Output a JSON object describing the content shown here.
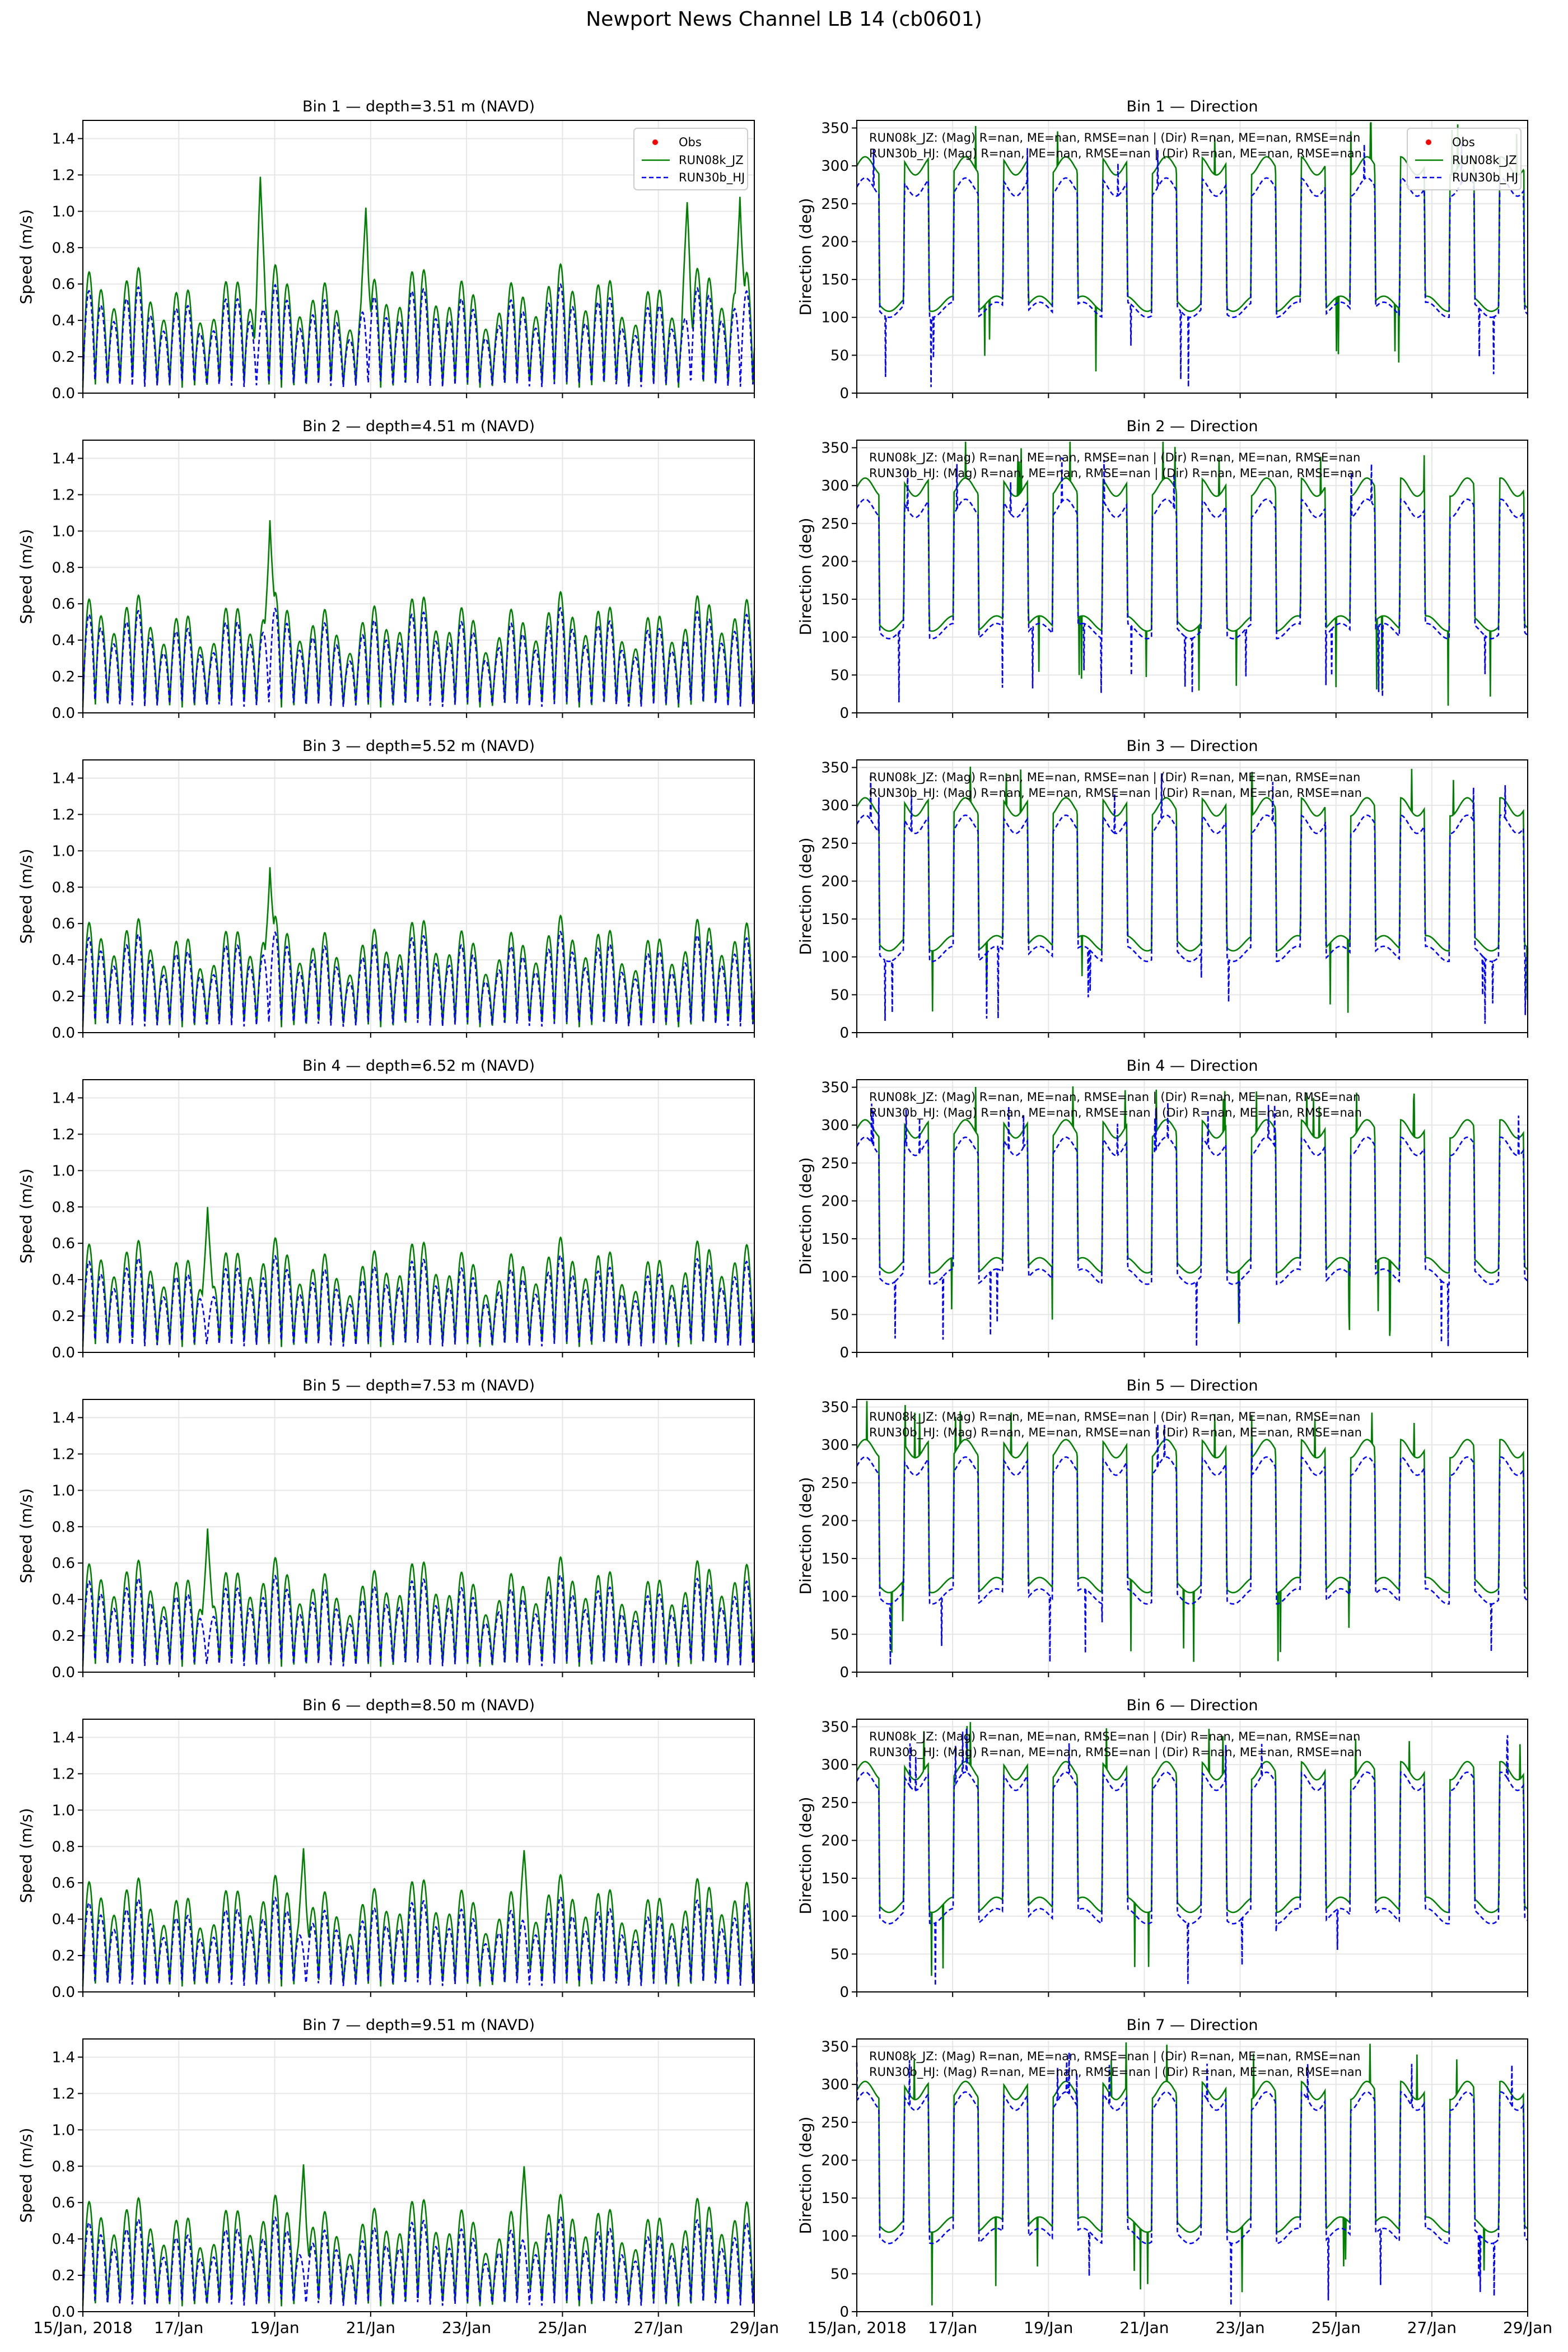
{
  "figure": {
    "title": "Newport News Channel LB 14 (cb0601)"
  },
  "legend": {
    "obs": "Obs",
    "model_a": "RUN08k_JZ",
    "model_b": "RUN30b_HJ"
  },
  "colors": {
    "obs": "#ff0000",
    "model_a": "#008000",
    "model_b": "#0000ff",
    "grid": "#e6e6e6",
    "axis": "#000000"
  },
  "x_axis": {
    "range_days": [
      0,
      14
    ],
    "tick_days": [
      0,
      2,
      4,
      6,
      8,
      10,
      12,
      14
    ],
    "tick_labels": [
      "15/Jan, 2018",
      "17/Jan",
      "19/Jan",
      "21/Jan",
      "23/Jan",
      "25/Jan",
      "27/Jan",
      "29/Jan"
    ]
  },
  "speed_axis": {
    "label": "Speed (m/s)",
    "ylim": [
      0,
      1.5
    ],
    "ticks": [
      0,
      0.2,
      0.4,
      0.6,
      0.8,
      1.0,
      1.2,
      1.4
    ],
    "tick_labels": [
      "0.0",
      "0.2",
      "0.4",
      "0.6",
      "0.8",
      "1.0",
      "1.2",
      "1.4"
    ]
  },
  "dir_axis": {
    "label": "Direction (deg)",
    "ylim": [
      0,
      360
    ],
    "ticks": [
      0,
      50,
      100,
      150,
      200,
      250,
      300,
      350
    ],
    "tick_labels": [
      "0",
      "50",
      "100",
      "150",
      "200",
      "250",
      "300",
      "350"
    ]
  },
  "stats": {
    "line_a": "RUN08k_JZ: (Mag) R=nan, ME=nan, RMSE=nan | (Dir) R=nan, ME=nan, RMSE=nan",
    "line_b": "RUN30b_HJ: (Mag) R=nan, ME=nan, RMSE=nan | (Dir) R=nan, ME=nan, RMSE=nan"
  },
  "chart_data": [
    {
      "type": "line",
      "panel": "speed",
      "bin": 1,
      "title": "Bin 1 — depth=3.51 m (NAVD)",
      "series": [
        {
          "name": "RUN08k_JZ",
          "amplitude": 0.62,
          "peak_values": [
            [
              3.7,
              1.19
            ],
            [
              5.9,
              1.02
            ],
            [
              12.6,
              1.05
            ],
            [
              13.7,
              1.08
            ]
          ]
        },
        {
          "name": "RUN30b_HJ",
          "amplitude": 0.52
        }
      ]
    },
    {
      "type": "line",
      "panel": "direction",
      "bin": 1,
      "title": "Bin 1 — Direction",
      "series": [
        {
          "name": "RUN08k_JZ",
          "flood_deg": 300,
          "ebb_deg": 118
        },
        {
          "name": "RUN30b_HJ",
          "flood_deg": 272,
          "ebb_deg": 110
        }
      ]
    },
    {
      "type": "line",
      "panel": "speed",
      "bin": 2,
      "title": "Bin 2 — depth=4.51 m (NAVD)",
      "series": [
        {
          "name": "RUN08k_JZ",
          "amplitude": 0.58,
          "peak_values": [
            [
              3.9,
              1.06
            ]
          ]
        },
        {
          "name": "RUN30b_HJ",
          "amplitude": 0.5
        }
      ]
    },
    {
      "type": "line",
      "panel": "direction",
      "bin": 2,
      "title": "Bin 2 — Direction",
      "series": [
        {
          "name": "RUN08k_JZ",
          "flood_deg": 298,
          "ebb_deg": 118
        },
        {
          "name": "RUN30b_HJ",
          "flood_deg": 270,
          "ebb_deg": 108
        }
      ]
    },
    {
      "type": "line",
      "panel": "speed",
      "bin": 3,
      "title": "Bin 3 — depth=5.52 m (NAVD)",
      "series": [
        {
          "name": "RUN08k_JZ",
          "amplitude": 0.56,
          "peak_values": [
            [
              3.9,
              0.91
            ]
          ]
        },
        {
          "name": "RUN30b_HJ",
          "amplitude": 0.48
        }
      ]
    },
    {
      "type": "line",
      "panel": "direction",
      "bin": 3,
      "title": "Bin 3 — Direction",
      "series": [
        {
          "name": "RUN08k_JZ",
          "flood_deg": 298,
          "ebb_deg": 118
        },
        {
          "name": "RUN30b_HJ",
          "flood_deg": 275,
          "ebb_deg": 104
        }
      ]
    },
    {
      "type": "line",
      "panel": "speed",
      "bin": 4,
      "title": "Bin 4 — depth=6.52 m (NAVD)",
      "series": [
        {
          "name": "RUN08k_JZ",
          "amplitude": 0.55,
          "peak_values": [
            [
              2.6,
              0.8
            ]
          ]
        },
        {
          "name": "RUN30b_HJ",
          "amplitude": 0.46
        }
      ]
    },
    {
      "type": "line",
      "panel": "direction",
      "bin": 4,
      "title": "Bin 4 — Direction",
      "series": [
        {
          "name": "RUN08k_JZ",
          "flood_deg": 295,
          "ebb_deg": 115
        },
        {
          "name": "RUN30b_HJ",
          "flood_deg": 272,
          "ebb_deg": 100
        }
      ]
    },
    {
      "type": "line",
      "panel": "speed",
      "bin": 5,
      "title": "Bin 5 — depth=7.53 m (NAVD)",
      "series": [
        {
          "name": "RUN08k_JZ",
          "amplitude": 0.55,
          "peak_values": [
            [
              2.6,
              0.79
            ]
          ]
        },
        {
          "name": "RUN30b_HJ",
          "amplitude": 0.46
        }
      ]
    },
    {
      "type": "line",
      "panel": "direction",
      "bin": 5,
      "title": "Bin 5 — Direction",
      "series": [
        {
          "name": "RUN08k_JZ",
          "flood_deg": 295,
          "ebb_deg": 115
        },
        {
          "name": "RUN30b_HJ",
          "flood_deg": 272,
          "ebb_deg": 100
        }
      ]
    },
    {
      "type": "line",
      "panel": "speed",
      "bin": 6,
      "title": "Bin 6 — depth=8.50 m (NAVD)",
      "series": [
        {
          "name": "RUN08k_JZ",
          "amplitude": 0.56,
          "peak_values": [
            [
              4.6,
              0.79
            ],
            [
              9.2,
              0.78
            ]
          ]
        },
        {
          "name": "RUN30b_HJ",
          "amplitude": 0.45
        }
      ]
    },
    {
      "type": "line",
      "panel": "direction",
      "bin": 6,
      "title": "Bin 6 — Direction",
      "series": [
        {
          "name": "RUN08k_JZ",
          "flood_deg": 292,
          "ebb_deg": 115
        },
        {
          "name": "RUN30b_HJ",
          "flood_deg": 278,
          "ebb_deg": 100
        }
      ]
    },
    {
      "type": "line",
      "panel": "speed",
      "bin": 7,
      "title": "Bin 7 — depth=9.51 m (NAVD)",
      "series": [
        {
          "name": "RUN08k_JZ",
          "amplitude": 0.56,
          "peak_values": [
            [
              4.6,
              0.81
            ],
            [
              9.2,
              0.8
            ]
          ]
        },
        {
          "name": "RUN30b_HJ",
          "amplitude": 0.45
        }
      ]
    },
    {
      "type": "line",
      "panel": "direction",
      "bin": 7,
      "title": "Bin 7 — Direction",
      "series": [
        {
          "name": "RUN08k_JZ",
          "flood_deg": 292,
          "ebb_deg": 115
        },
        {
          "name": "RUN30b_HJ",
          "flood_deg": 278,
          "ebb_deg": 100
        }
      ]
    }
  ]
}
